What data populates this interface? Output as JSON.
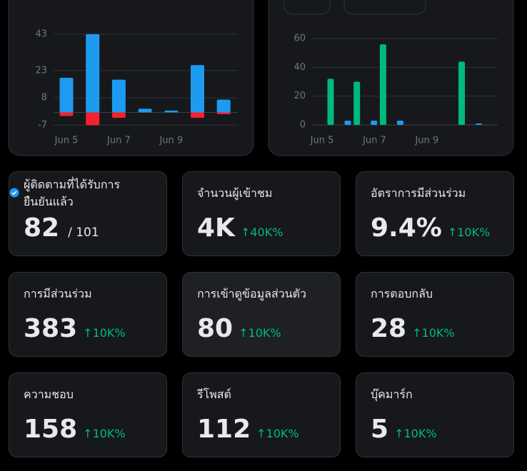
{
  "chart_data": [
    {
      "type": "bar",
      "stacked": true,
      "categories": [
        "Jun 5",
        null,
        "Jun 7",
        null,
        "Jun 9",
        null,
        null
      ],
      "series": [
        {
          "color": "#1d9bf0",
          "values": [
            19,
            43,
            18,
            2,
            1,
            26,
            7
          ]
        },
        {
          "color": "#f4212e",
          "values": [
            -2,
            -7,
            -3,
            0,
            0,
            -3,
            -1
          ]
        }
      ],
      "ylim": [
        -10,
        50
      ],
      "yticks": [
        43,
        23,
        8,
        -7
      ],
      "grid": true
    },
    {
      "type": "bar",
      "stacked": false,
      "categories": [
        "Jun 5",
        null,
        "Jun 7",
        null,
        "Jun 9",
        null,
        null
      ],
      "series": [
        {
          "color": "#00ba7c",
          "values": [
            32,
            30,
            56,
            0,
            0,
            44,
            0
          ]
        },
        {
          "color": "#1d9bf0",
          "values": [
            3,
            3,
            3,
            0,
            0,
            1,
            0
          ]
        }
      ],
      "ylim": [
        0,
        65
      ],
      "yticks": [
        0,
        20,
        40,
        60
      ],
      "grid": true
    }
  ],
  "stats": [
    {
      "label": "ผู้ติดตามที่ได้รับการยืนยันแล้ว",
      "value": "82",
      "total": "/ 101",
      "verified": true
    },
    {
      "label": "จำนวนผู้เข้าชม",
      "value": "4K",
      "delta": "↑40K%"
    },
    {
      "label": "อัตราการมีส่วนร่วม",
      "value": "9.4%",
      "delta": "↑10K%"
    },
    {
      "label": "การมีส่วนร่วม",
      "value": "383",
      "delta": "↑10K%"
    },
    {
      "label": "การเข้าดูข้อมูลส่วนตัว",
      "value": "80",
      "delta": "↑10K%",
      "highlighted": true
    },
    {
      "label": "การตอบกลับ",
      "value": "28",
      "delta": "↑10K%"
    },
    {
      "label": "ความชอบ",
      "value": "158",
      "delta": "↑10K%"
    },
    {
      "label": "รีโพสต์",
      "value": "112",
      "delta": "↑10K%"
    },
    {
      "label": "บุ๊คมาร์ก",
      "value": "5",
      "delta": "↑10K%"
    }
  ]
}
